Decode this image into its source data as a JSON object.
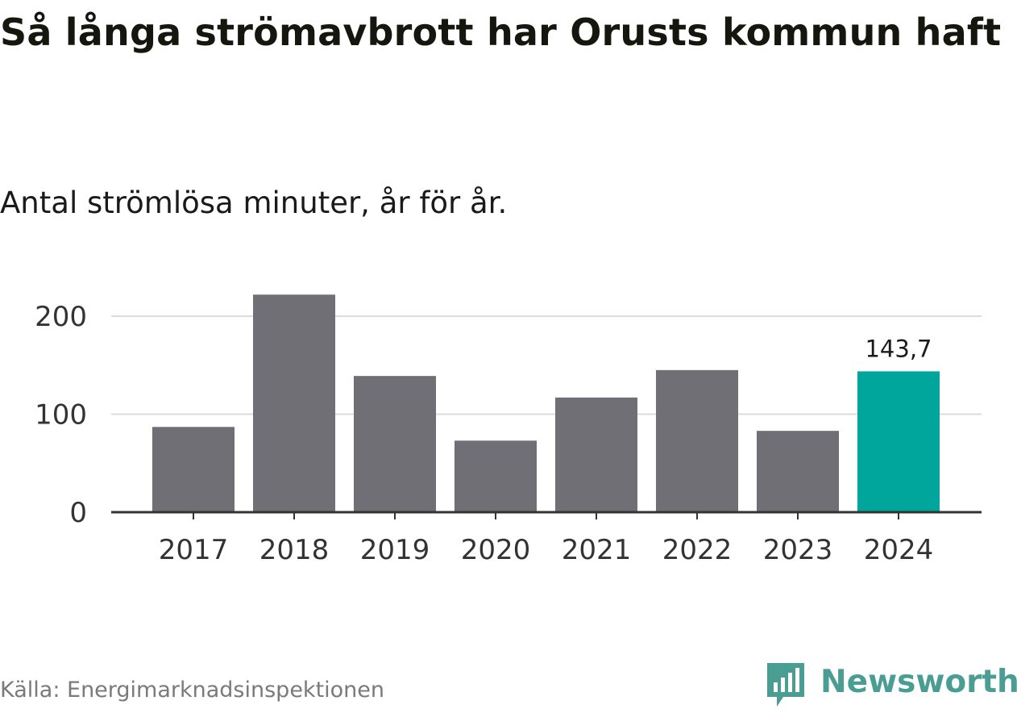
{
  "title": "Så långa strömavbrott har Orusts kommun haft",
  "subtitle": "Antal strömlösa minuter, år för år.",
  "source": "Källa: Energimarknadsinspektionen",
  "brand": {
    "name": "Newsworthy",
    "icon": "bar-chart-speech-bubble-icon"
  },
  "colors": {
    "bar": "#706f76",
    "highlight": "#00a59b",
    "grid": "#dcdcdc",
    "axis": "#333333",
    "brand": "#4a9d93"
  },
  "chart_data": {
    "type": "bar",
    "categories": [
      "2017",
      "2018",
      "2019",
      "2020",
      "2021",
      "2022",
      "2023",
      "2024"
    ],
    "values": [
      87,
      222,
      139,
      73,
      117,
      145,
      83,
      143.7
    ],
    "highlight_index": 7,
    "data_labels": [
      null,
      null,
      null,
      null,
      null,
      null,
      null,
      "143,7"
    ],
    "ylim": [
      0,
      225
    ],
    "yticks": [
      0,
      100,
      200
    ],
    "ytick_labels": [
      "0",
      "100",
      "200"
    ],
    "grid": true,
    "legend": "none"
  }
}
